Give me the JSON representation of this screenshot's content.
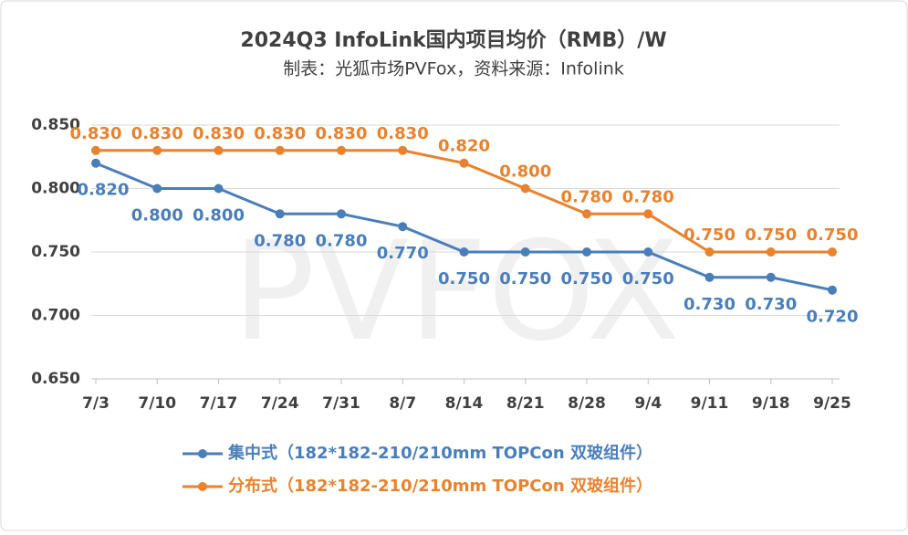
{
  "chart_data": {
    "type": "line",
    "title": "2024Q3 InfoLink国内项目均价（RMB）/W",
    "subtitle": "制表：光狐市场PVFox，资料来源：Infolink",
    "watermark": "PVFOX",
    "categories": [
      "7/3",
      "7/10",
      "7/17",
      "7/24",
      "7/31",
      "8/7",
      "8/14",
      "8/21",
      "8/28",
      "9/4",
      "9/11",
      "9/18",
      "9/25"
    ],
    "series": [
      {
        "name": "集中式（182*182-210/210mm TOPCon 双玻组件）",
        "color": "#4a7ebb",
        "values": [
          0.82,
          0.8,
          0.8,
          0.78,
          0.78,
          0.77,
          0.75,
          0.75,
          0.75,
          0.75,
          0.73,
          0.73,
          0.72
        ],
        "value_labels": [
          "0.820",
          "0.800",
          "0.800",
          "0.780",
          "0.780",
          "0.770",
          "0.750",
          "0.750",
          "0.750",
          "0.750",
          "0.730",
          "0.730",
          "0.720"
        ]
      },
      {
        "name": "分布式（182*182-210/210mm TOPCon 双玻组件）",
        "color": "#e8822e",
        "values": [
          0.83,
          0.83,
          0.83,
          0.83,
          0.83,
          0.83,
          0.82,
          0.8,
          0.78,
          0.78,
          0.75,
          0.75,
          0.75
        ],
        "value_labels": [
          "0.830",
          "0.830",
          "0.830",
          "0.830",
          "0.830",
          "0.830",
          "0.820",
          "0.800",
          "0.780",
          "0.780",
          "0.750",
          "0.750",
          "0.750"
        ]
      }
    ],
    "ylim": [
      0.65,
      0.85
    ],
    "yticks": [
      {
        "value": 0.65,
        "label": "0.650"
      },
      {
        "value": 0.7,
        "label": "0.700"
      },
      {
        "value": 0.75,
        "label": "0.750"
      },
      {
        "value": 0.8,
        "label": "0.800"
      },
      {
        "value": 0.85,
        "label": "0.850"
      }
    ],
    "grid": true
  }
}
